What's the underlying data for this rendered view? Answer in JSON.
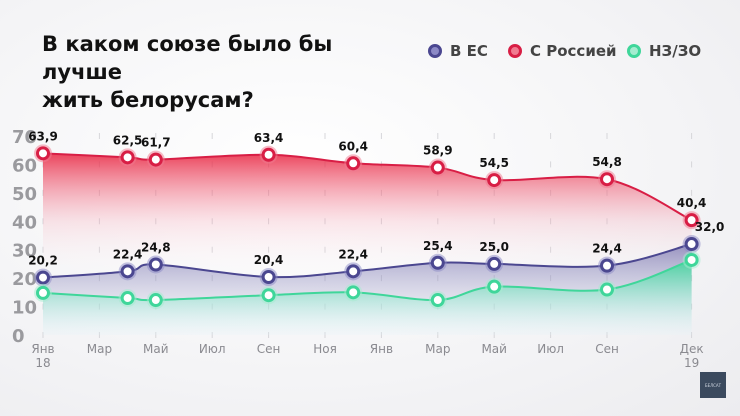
{
  "title_line1": "В каком союзе было бы лучше",
  "title_line2": "жить белорусам?",
  "logo_text": "БЕЛСАТ",
  "chart_data": {
    "type": "line",
    "title": "В каком союзе было бы лучше жить белорусам?",
    "x": [
      "2018-01",
      "2018-04",
      "2018-05",
      "2018-09",
      "2018-12",
      "2019-03",
      "2019-05",
      "2019-09",
      "2019-12"
    ],
    "ylim": [
      0,
      70
    ],
    "yticks": [
      0,
      10,
      20,
      30,
      40,
      50,
      60,
      70
    ],
    "xtick_labels": [
      "Янв",
      "Мар",
      "Май",
      "Июл",
      "Сен",
      "Ноя",
      "Янв",
      "Мар",
      "Май",
      "Июл",
      "Сен",
      "Дек"
    ],
    "xtick_sublabels": {
      "first": "18",
      "last": "19"
    },
    "legend_placement": "top-right",
    "grid": "vertical dashed ticks",
    "series": [
      {
        "name": "В ЕС",
        "color": "#4b4790",
        "values": [
          20.2,
          22.4,
          24.8,
          20.4,
          22.4,
          25.4,
          25.0,
          24.4,
          32.0
        ],
        "labels": [
          "20,2",
          "22,4",
          "24,8",
          "20,4",
          "22,4",
          "25,4",
          "25,0",
          "24,4",
          "32,0"
        ]
      },
      {
        "name": "С Россией",
        "color": "#d81e45",
        "values": [
          63.9,
          62.5,
          61.7,
          63.4,
          60.4,
          58.9,
          54.5,
          54.8,
          40.4
        ],
        "labels": [
          "63,9",
          "62,5",
          "61,7",
          "63,4",
          "60,4",
          "58,9",
          "54,5",
          "54,8",
          "40,4"
        ]
      },
      {
        "name": "НЗ/ЗО",
        "color": "#3fd69a",
        "values": [
          14.8,
          13,
          12.3,
          14,
          15,
          12.3,
          17,
          16,
          26.4
        ]
      }
    ]
  }
}
